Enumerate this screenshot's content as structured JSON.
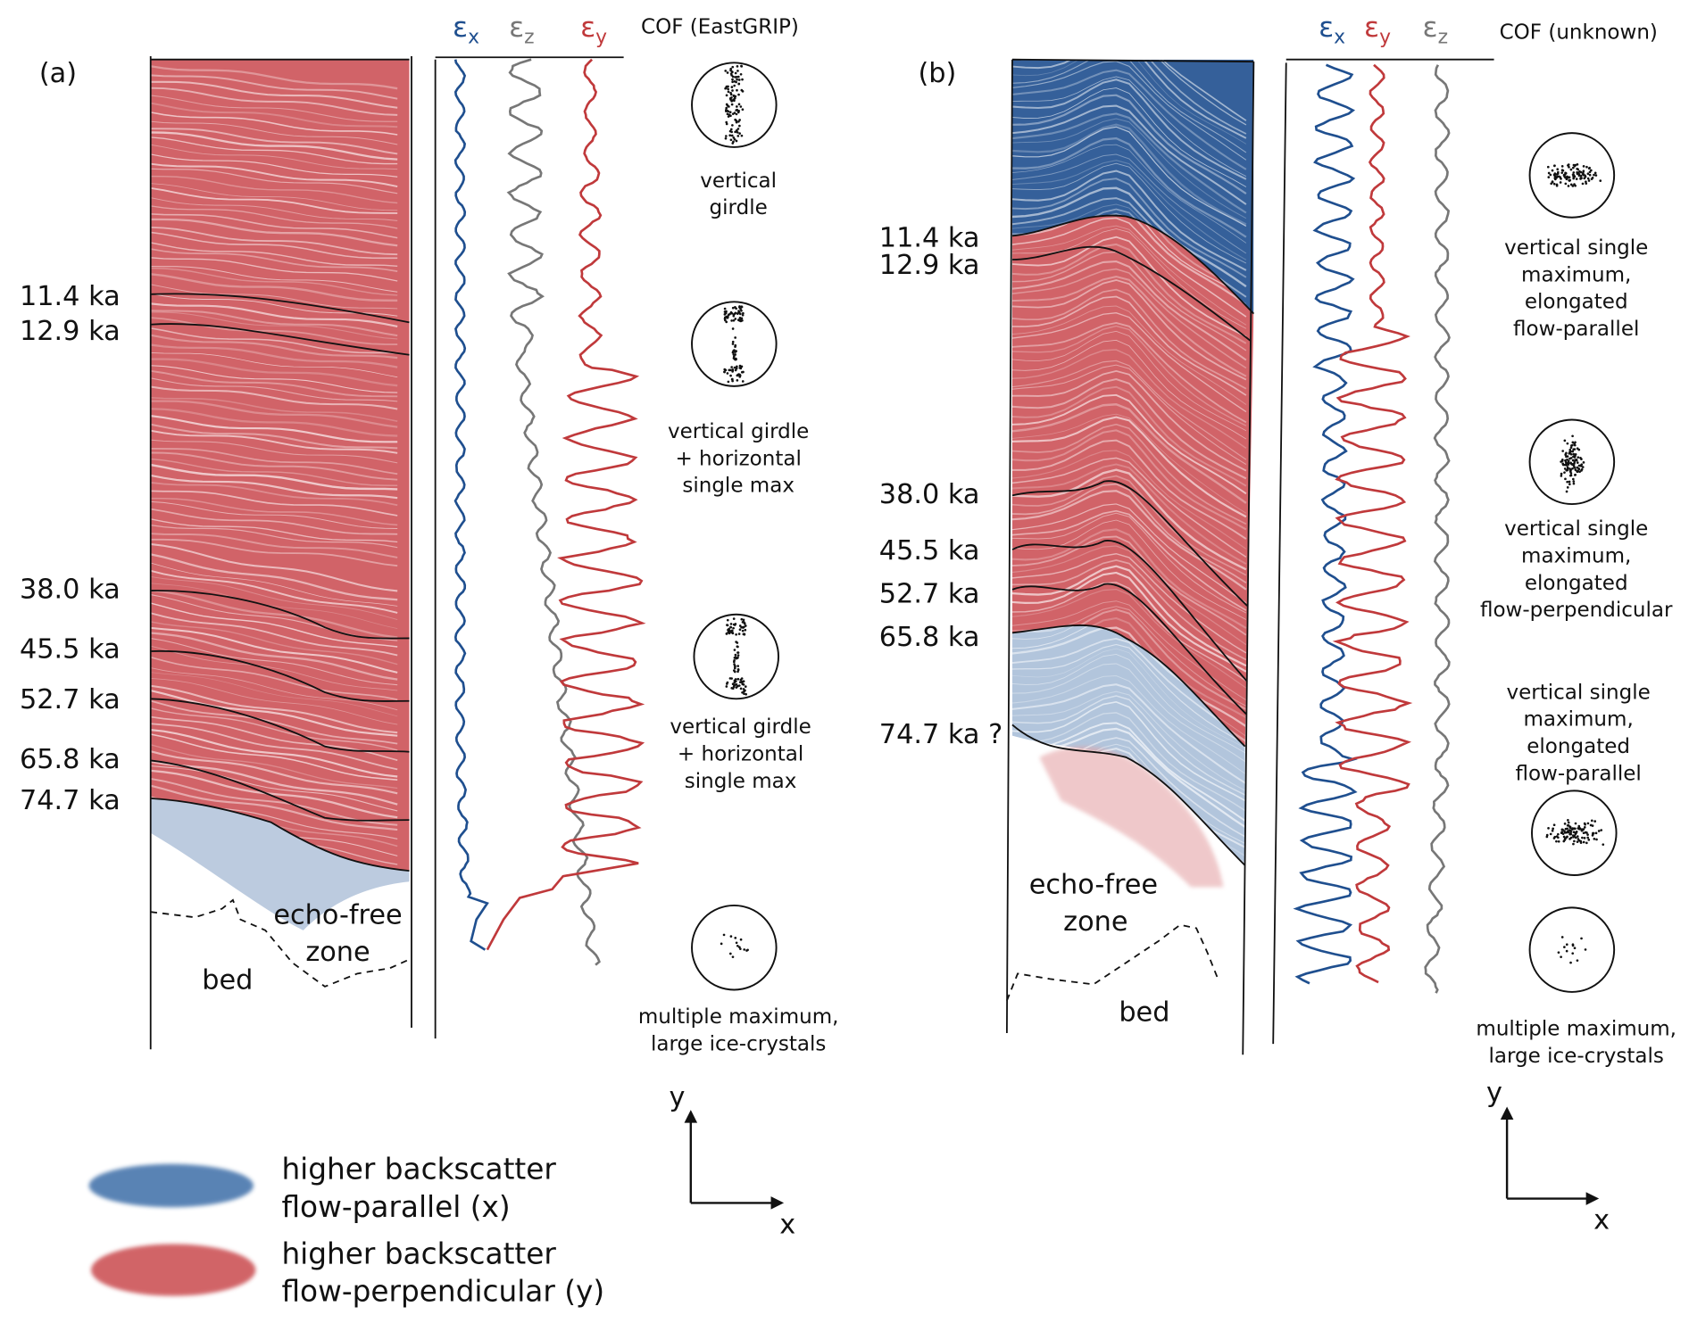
{
  "colors": {
    "flow_parallel": "#1f4f8f",
    "flow_perpendicular": "#c0393b",
    "strain_z": "#777777"
  },
  "panel_a": {
    "label": "(a)",
    "eps_x": "ε",
    "eps_x_sub": "x",
    "eps_z": "ε",
    "eps_z_sub": "z",
    "eps_y": "ε",
    "eps_y_sub": "y",
    "cof_header": "COF (EastGRIP)",
    "ages": [
      "11.4 ka",
      "12.9 ka",
      "38.0 ka",
      "45.5 ka",
      "52.7 ka",
      "65.8 ka",
      "74.7 ka"
    ],
    "echo_free": [
      "echo-free",
      "zone"
    ],
    "bed": "bed",
    "cof": [
      {
        "type": "vertical-girdle",
        "text": [
          "vertical",
          "girdle"
        ]
      },
      {
        "type": "girdle-plus-max",
        "text": [
          "vertical girdle",
          "+ horizontal",
          "single max"
        ]
      },
      {
        "type": "girdle-plus-max",
        "text": [
          "vertical girdle",
          "+ horizontal",
          "single max"
        ]
      },
      {
        "type": "multiple",
        "text": [
          "multiple maximum,",
          "large ice-crystals"
        ]
      }
    ]
  },
  "panel_b": {
    "label": "(b)",
    "eps_x": "ε",
    "eps_x_sub": "x",
    "eps_y": "ε",
    "eps_y_sub": "y",
    "eps_z": "ε",
    "eps_z_sub": "z",
    "cof_header": "COF (unknown)",
    "ages": [
      "11.4 ka",
      "12.9 ka",
      "38.0 ka",
      "45.5 ka",
      "52.7 ka",
      "65.8 ka",
      "74.7 ka ?"
    ],
    "echo_free": [
      "echo-free",
      "zone"
    ],
    "bed": "bed",
    "cof": [
      {
        "type": "single-max-parallel",
        "text": [
          "vertical single",
          "maximum,",
          "elongated",
          "flow-parallel"
        ]
      },
      {
        "type": "single-max-perpendicular",
        "text": [
          "vertical single",
          "maximum,",
          "elongated",
          "flow-perpendicular"
        ]
      },
      {
        "type": "single-max-parallel",
        "text": [
          "vertical single",
          "maximum,",
          "elongated",
          "flow-parallel"
        ]
      },
      {
        "type": "multiple",
        "text": [
          "multiple maximum,",
          "large ice-crystals"
        ]
      }
    ]
  },
  "axes": {
    "y": "y",
    "x": "x"
  },
  "legend": [
    {
      "color": "blue",
      "text": [
        "higher backscatter",
        "flow-parallel (x)"
      ]
    },
    {
      "color": "red",
      "text": [
        "higher backscatter",
        "flow-perpendicular (y)"
      ]
    }
  ]
}
